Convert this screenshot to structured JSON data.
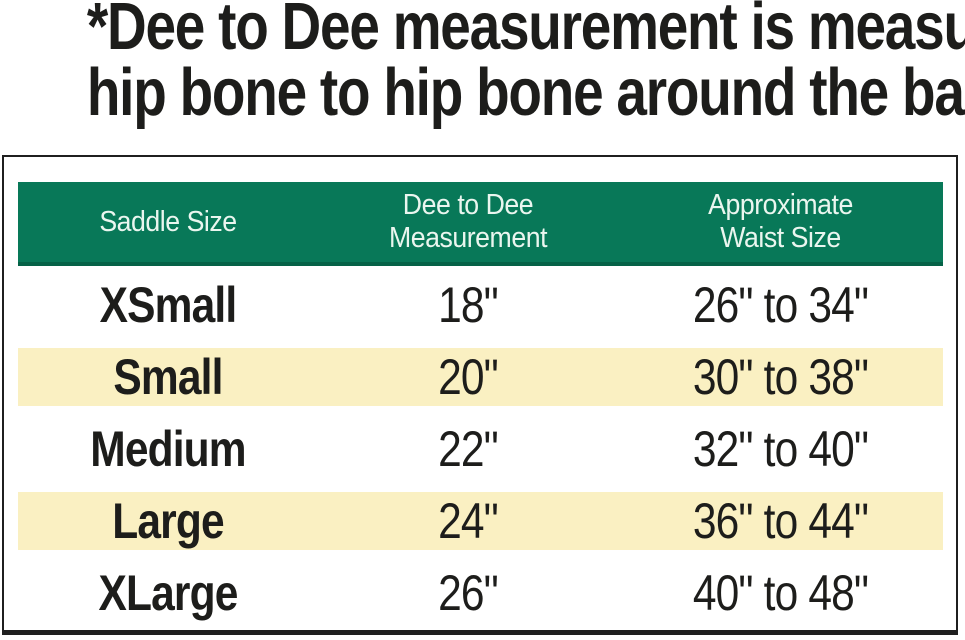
{
  "note": {
    "line1": "*Dee to Dee measurement is measured",
    "line2": "hip bone to hip bone around the back"
  },
  "table": {
    "columns": {
      "saddle_size": "Saddle Size",
      "dee_to_dee": "Dee to Dee\nMeasurement",
      "waist_size": "Approximate\nWaist Size"
    },
    "rows": [
      {
        "size": "XSmall",
        "dee": "18\"",
        "waist": "26\" to 34\"",
        "highlight": false
      },
      {
        "size": "Small",
        "dee": "20\"",
        "waist": "30\" to 38\"",
        "highlight": true
      },
      {
        "size": "Medium",
        "dee": "22\"",
        "waist": "32\" to 40\"",
        "highlight": false
      },
      {
        "size": "Large",
        "dee": "24\"",
        "waist": "36\" to 44\"",
        "highlight": true
      },
      {
        "size": "XLarge",
        "dee": "26\"",
        "waist": "40\" to 48\"",
        "highlight": false
      }
    ]
  },
  "colors": {
    "header_bg": "#087858",
    "header_bg_edge": "#056247",
    "header_text": "#eaf6ef",
    "row_highlight": "#faf0c2",
    "text": "#1d1d1b",
    "border": "#1f1f1f",
    "page_bg": "#ffffff"
  },
  "chart_data": {
    "type": "table",
    "title": "*Dee to Dee measurement is measured hip bone to hip bone around the back",
    "columns": [
      "Saddle Size",
      "Dee to Dee Measurement",
      "Approximate Waist Size"
    ],
    "rows": [
      [
        "XSmall",
        "18\"",
        "26\" to 34\""
      ],
      [
        "Small",
        "20\"",
        "30\" to 38\""
      ],
      [
        "Medium",
        "22\"",
        "32\" to 40\""
      ],
      [
        "Large",
        "24\"",
        "36\" to 44\""
      ],
      [
        "XLarge",
        "26\"",
        "40\" to 48\""
      ]
    ],
    "layout_hints": {
      "header_style": "green background, white text",
      "striped_rows": [
        "Small",
        "Large"
      ],
      "stripe_color": "#faf0c2"
    }
  }
}
